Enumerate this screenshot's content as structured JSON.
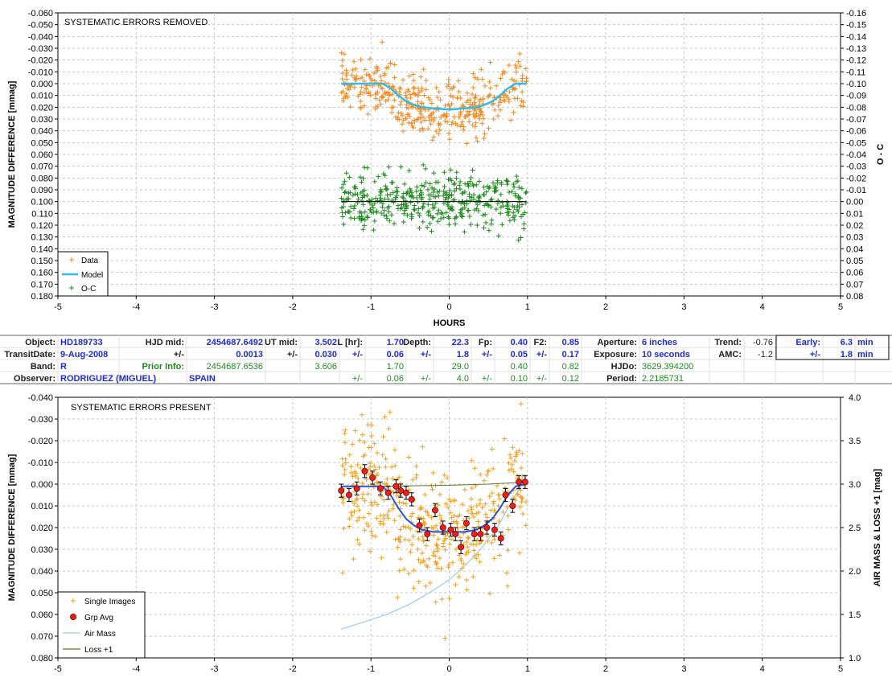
{
  "chart_data": [
    {
      "type": "scatter",
      "title": "SYSTEMATIC ERRORS REMOVED",
      "xlabel": "HOURS",
      "ylabel": "MAGNITUDE DIFFERENCE [mmag]",
      "y2label": "O - C",
      "xlim": [
        -5,
        5
      ],
      "ylim": [
        -0.06,
        0.18
      ],
      "y_inverted": true,
      "y2lim": [
        -0.16,
        0.08
      ],
      "xticks": [
        "-5",
        "-4",
        "-3",
        "-2",
        "-1",
        "0",
        "1",
        "2",
        "3",
        "4",
        "5"
      ],
      "yticks": [
        "-0.060",
        "-0.050",
        "-0.040",
        "-0.030",
        "-0.020",
        "-0.010",
        "0.000",
        "0.010",
        "0.020",
        "0.030",
        "0.040",
        "0.050",
        "0.060",
        "0.070",
        "0.080",
        "0.090",
        "0.100",
        "0.110",
        "0.120",
        "0.130",
        "0.140",
        "0.150",
        "0.160",
        "0.170",
        "0.180"
      ],
      "y2ticks": [
        "-0.16",
        "-0.15",
        "-0.14",
        "-0.13",
        "-0.12",
        "-0.11",
        "-0.10",
        "-0.09",
        "-0.08",
        "-0.07",
        "-0.06",
        "-0.05",
        "-0.04",
        "-0.03",
        "-0.02",
        "-0.01",
        "0.00",
        "0.01",
        "0.02",
        "0.03",
        "0.04",
        "0.05",
        "0.06",
        "0.07",
        "0.08"
      ],
      "legend_position": "bottom-left",
      "grid": true,
      "series": [
        {
          "name": "Data",
          "marker": "+",
          "color": "#f08a24",
          "x_range": [
            -1.38,
            0.99
          ],
          "y_center": 0.01,
          "y_spread": 0.03
        },
        {
          "name": "Model",
          "type": "line",
          "color": "#33bbe8",
          "x": [
            -1.38,
            -0.95,
            -0.85,
            -0.75,
            -0.65,
            -0.55,
            -0.45,
            -0.35,
            -0.2,
            0,
            0.2,
            0.35,
            0.45,
            0.55,
            0.65,
            0.75,
            0.85,
            0.99
          ],
          "y": [
            0.0,
            0.0,
            0.0,
            0.004,
            0.01,
            0.015,
            0.018,
            0.02,
            0.021,
            0.022,
            0.021,
            0.02,
            0.018,
            0.015,
            0.01,
            0.004,
            0.0,
            0.0
          ]
        },
        {
          "name": "O-C",
          "marker": "+",
          "color": "#1e8a1e",
          "x_range": [
            -1.38,
            0.99
          ],
          "y2_center": 0.0,
          "y2_spread": 0.03
        },
        {
          "name": "",
          "type": "line",
          "color": "#000000",
          "axis": "y2",
          "x": [
            -1.38,
            0.99
          ],
          "y": [
            0.0,
            0.0
          ]
        }
      ]
    },
    {
      "type": "scatter",
      "title": "SYSTEMATIC ERRORS PRESENT",
      "ylabel": "MAGNITUDE DIFFERENCE [mmag]",
      "y2label": "AIR MASS & LOSS +1 [mag]",
      "xlim": [
        -5,
        5
      ],
      "ylim": [
        -0.04,
        0.08
      ],
      "y_inverted": true,
      "y2lim": [
        1.0,
        4.0
      ],
      "xticks": [
        "-5",
        "-4",
        "-3",
        "-2",
        "-1",
        "0",
        "1",
        "2",
        "3",
        "4",
        "5"
      ],
      "yticks": [
        "-0.040",
        "-0.030",
        "-0.020",
        "-0.010",
        "0.000",
        "0.010",
        "0.020",
        "0.030",
        "0.040",
        "0.050",
        "0.060",
        "0.070",
        "0.080"
      ],
      "y2ticks": [
        "4.0",
        "3.5",
        "3.0",
        "2.5",
        "2.0",
        "1.5",
        "1.0"
      ],
      "legend_position": "bottom-left",
      "grid": true,
      "series": [
        {
          "name": "Single Images",
          "marker": "+",
          "color": "#f0a020",
          "x_range": [
            -1.38,
            0.99
          ],
          "y_center": 0.01,
          "y_spread": 0.033
        },
        {
          "name": "Grp Avg",
          "marker": "circle",
          "color": "#e82020",
          "x": [
            -1.38,
            -1.28,
            -1.18,
            -1.08,
            -0.98,
            -0.88,
            -0.78,
            -0.68,
            -0.62,
            -0.55,
            -0.48,
            -0.38,
            -0.28,
            -0.18,
            -0.08,
            0.02,
            0.08,
            0.15,
            0.22,
            0.32,
            0.4,
            0.48,
            0.58,
            0.66,
            0.72,
            0.81,
            0.89,
            0.97
          ],
          "y": [
            0.003,
            0.005,
            0.002,
            -0.006,
            -0.003,
            0.002,
            0.004,
            0.001,
            0.003,
            0.004,
            0.007,
            0.019,
            0.023,
            0.012,
            0.02,
            0.021,
            0.023,
            0.029,
            0.018,
            0.023,
            0.023,
            0.02,
            0.021,
            0.025,
            0.005,
            0.01,
            -0.001,
            -0.001
          ],
          "err": [
            0.003,
            0.003,
            0.003,
            0.003,
            0.003,
            0.003,
            0.003,
            0.003,
            0.003,
            0.003,
            0.003,
            0.003,
            0.003,
            0.003,
            0.003,
            0.003,
            0.003,
            0.003,
            0.003,
            0.003,
            0.003,
            0.003,
            0.003,
            0.003,
            0.003,
            0.003,
            0.003,
            0.003
          ]
        },
        {
          "name": "",
          "type": "line",
          "color": "#2a52d8",
          "x": [
            -1.38,
            -0.95,
            -0.85,
            -0.75,
            -0.65,
            -0.55,
            -0.45,
            -0.35,
            -0.2,
            0,
            0.2,
            0.35,
            0.45,
            0.55,
            0.65,
            0.75,
            0.85,
            0.99
          ],
          "y": [
            0.001,
            0.001,
            0.001,
            0.005,
            0.011,
            0.016,
            0.019,
            0.021,
            0.022,
            0.022,
            0.022,
            0.021,
            0.019,
            0.016,
            0.011,
            0.005,
            0.001,
            0.0
          ]
        },
        {
          "name": "Air Mass",
          "type": "line",
          "color": "#9fcbea",
          "axis": "y2",
          "x": [
            -1.38,
            -1.1,
            -0.8,
            -0.5,
            -0.2,
            0.0,
            0.2,
            0.4,
            0.6,
            0.8,
            0.99
          ],
          "y": [
            1.33,
            1.41,
            1.5,
            1.62,
            1.78,
            1.9,
            2.06,
            2.25,
            2.48,
            2.8,
            3.1
          ]
        },
        {
          "name": "Loss +1",
          "type": "line",
          "color": "#5a7a2c",
          "x": [
            -1.38,
            -1.0,
            -0.5,
            0.0,
            0.5,
            0.99
          ],
          "y": [
            0.001,
            0.001,
            0.0008,
            0.0005,
            0.0,
            -0.001
          ]
        }
      ]
    }
  ],
  "info_table": {
    "rows": [
      [
        {
          "t": "Object:",
          "c": "#202020",
          "b": true,
          "a": "end"
        },
        {
          "t": "HD189733",
          "c": "#1f2bd0",
          "b": true,
          "a": "start"
        },
        {
          "t": "HJD mid:",
          "c": "#202020",
          "b": true,
          "a": "end"
        },
        {
          "t": "2454687.6492",
          "c": "#1f2bd0",
          "b": true,
          "a": "end"
        },
        {
          "t": "UT mid:",
          "c": "#202020",
          "b": true,
          "a": "end"
        },
        {
          "t": "3.502",
          "c": "#1f2bd0",
          "b": true,
          "a": "end"
        },
        {
          "t": "L [hr]:",
          "c": "#202020",
          "b": true,
          "a": "end"
        },
        {
          "t": "1.70",
          "c": "#1f2bd0",
          "b": true,
          "a": "end"
        },
        {
          "t": "Depth:",
          "c": "#202020",
          "b": true,
          "a": "end"
        },
        {
          "t": "22.3",
          "c": "#1f2bd0",
          "b": true,
          "a": "end"
        },
        {
          "t": "Fp:",
          "c": "#202020",
          "b": true,
          "a": "end"
        },
        {
          "t": "0.40",
          "c": "#1f2bd0",
          "b": true,
          "a": "end"
        },
        {
          "t": "F2:",
          "c": "#202020",
          "b": true,
          "a": "end"
        },
        {
          "t": "0.85",
          "c": "#1f2bd0",
          "b": true,
          "a": "end"
        },
        {
          "t": "Aperture:",
          "c": "#202020",
          "b": true,
          "a": "end"
        },
        {
          "t": "6 inches",
          "c": "#1f2bd0",
          "b": true,
          "a": "start"
        },
        {
          "t": "Trend:",
          "c": "#202020",
          "b": true,
          "a": "end"
        },
        {
          "t": "-0.76",
          "c": "#202020",
          "b": false,
          "a": "end"
        },
        {
          "t": "Early:",
          "c": "#1f2bd0",
          "b": true,
          "a": "end"
        },
        {
          "t": "6.3",
          "c": "#1f2bd0",
          "b": true,
          "a": "end"
        },
        {
          "t": "min",
          "c": "#1f2bd0",
          "b": true,
          "a": "start"
        }
      ],
      [
        {
          "t": "TransitDate:",
          "c": "#202020",
          "b": true,
          "a": "end"
        },
        {
          "t": "9-Aug-2008",
          "c": "#1f2bd0",
          "b": true,
          "a": "start"
        },
        {
          "t": "+/-",
          "c": "#202020",
          "b": true,
          "a": "end"
        },
        {
          "t": "0.0013",
          "c": "#1f2bd0",
          "b": true,
          "a": "end"
        },
        {
          "t": "+/-",
          "c": "#202020",
          "b": true,
          "a": "end"
        },
        {
          "t": "0.030",
          "c": "#1f2bd0",
          "b": true,
          "a": "end"
        },
        {
          "t": "+/-",
          "c": "#1f2bd0",
          "b": true,
          "a": "end"
        },
        {
          "t": "0.06",
          "c": "#1f2bd0",
          "b": true,
          "a": "end"
        },
        {
          "t": "+/-",
          "c": "#1f2bd0",
          "b": true,
          "a": "end"
        },
        {
          "t": "1.8",
          "c": "#1f2bd0",
          "b": true,
          "a": "end"
        },
        {
          "t": "+/-",
          "c": "#1f2bd0",
          "b": true,
          "a": "end"
        },
        {
          "t": "0.05",
          "c": "#1f2bd0",
          "b": true,
          "a": "end"
        },
        {
          "t": "+/-",
          "c": "#1f2bd0",
          "b": true,
          "a": "end"
        },
        {
          "t": "0.17",
          "c": "#1f2bd0",
          "b": true,
          "a": "end"
        },
        {
          "t": "Exposure:",
          "c": "#202020",
          "b": true,
          "a": "end"
        },
        {
          "t": "10 seconds",
          "c": "#1f2bd0",
          "b": true,
          "a": "start"
        },
        {
          "t": "AMC:",
          "c": "#202020",
          "b": true,
          "a": "end"
        },
        {
          "t": "-1.2",
          "c": "#202020",
          "b": false,
          "a": "end"
        },
        {
          "t": "+/-",
          "c": "#1f2bd0",
          "b": true,
          "a": "end"
        },
        {
          "t": "1.8",
          "c": "#1f2bd0",
          "b": true,
          "a": "end"
        },
        {
          "t": "min",
          "c": "#1f2bd0",
          "b": true,
          "a": "start"
        }
      ],
      [
        {
          "t": "Band:",
          "c": "#202020",
          "b": true,
          "a": "end"
        },
        {
          "t": "R",
          "c": "#1f2bd0",
          "b": true,
          "a": "start"
        },
        {
          "t": "Prior Info:",
          "c": "#1e8a1e",
          "b": true,
          "a": "end"
        },
        {
          "t": "2454687.6536",
          "c": "#1e8a1e",
          "b": false,
          "a": "end"
        },
        {
          "t": "",
          "c": "#1e8a1e",
          "b": false,
          "a": "end"
        },
        {
          "t": "3.606",
          "c": "#1e8a1e",
          "b": false,
          "a": "end"
        },
        {
          "t": "",
          "c": "#1e8a1e",
          "b": false,
          "a": "end"
        },
        {
          "t": "1.70",
          "c": "#1e8a1e",
          "b": false,
          "a": "end"
        },
        {
          "t": "",
          "c": "#1e8a1e",
          "b": false,
          "a": "end"
        },
        {
          "t": "29.0",
          "c": "#1e8a1e",
          "b": false,
          "a": "end"
        },
        {
          "t": "",
          "c": "#1e8a1e",
          "b": false,
          "a": "end"
        },
        {
          "t": "0.40",
          "c": "#1e8a1e",
          "b": false,
          "a": "end"
        },
        {
          "t": "",
          "c": "#1e8a1e",
          "b": false,
          "a": "end"
        },
        {
          "t": "0.82",
          "c": "#1e8a1e",
          "b": false,
          "a": "end"
        },
        {
          "t": "HJDo:",
          "c": "#202020",
          "b": true,
          "a": "end"
        },
        {
          "t": "3629.394200",
          "c": "#1e8a1e",
          "b": false,
          "a": "start"
        },
        {
          "t": "",
          "c": "#202020",
          "b": false,
          "a": "end"
        },
        {
          "t": "",
          "c": "#202020",
          "b": false,
          "a": "end"
        },
        {
          "t": "",
          "c": "#202020",
          "b": false,
          "a": "end"
        },
        {
          "t": "",
          "c": "#202020",
          "b": false,
          "a": "end"
        },
        {
          "t": "",
          "c": "#202020",
          "b": false,
          "a": "start"
        }
      ],
      [
        {
          "t": "Observer:",
          "c": "#202020",
          "b": true,
          "a": "end"
        },
        {
          "t": "RODRIGUEZ (MIGUEL)",
          "c": "#1f2bd0",
          "b": true,
          "a": "start"
        },
        {
          "t": "",
          "c": "#202020",
          "b": false,
          "a": "end"
        },
        {
          "t": "SPAIN",
          "c": "#1f2bd0",
          "b": true,
          "a": "start"
        },
        {
          "t": "",
          "c": "#202020",
          "b": false,
          "a": "end"
        },
        {
          "t": "",
          "c": "#202020",
          "b": false,
          "a": "end"
        },
        {
          "t": "+/-",
          "c": "#1e8a1e",
          "b": false,
          "a": "end"
        },
        {
          "t": "0.06",
          "c": "#1e8a1e",
          "b": false,
          "a": "end"
        },
        {
          "t": "+/-",
          "c": "#1e8a1e",
          "b": false,
          "a": "end"
        },
        {
          "t": "4.0",
          "c": "#1e8a1e",
          "b": false,
          "a": "end"
        },
        {
          "t": "+/-",
          "c": "#1e8a1e",
          "b": false,
          "a": "end"
        },
        {
          "t": "0.10",
          "c": "#1e8a1e",
          "b": false,
          "a": "end"
        },
        {
          "t": "+/-",
          "c": "#1e8a1e",
          "b": false,
          "a": "end"
        },
        {
          "t": "0.12",
          "c": "#1e8a1e",
          "b": false,
          "a": "end"
        },
        {
          "t": "Period:",
          "c": "#202020",
          "b": true,
          "a": "end"
        },
        {
          "t": "2.2185731",
          "c": "#1e8a1e",
          "b": false,
          "a": "start"
        },
        {
          "t": "",
          "c": "#202020",
          "b": false,
          "a": "end"
        },
        {
          "t": "",
          "c": "#202020",
          "b": false,
          "a": "end"
        },
        {
          "t": "",
          "c": "#202020",
          "b": false,
          "a": "end"
        },
        {
          "t": "",
          "c": "#202020",
          "b": false,
          "a": "end"
        },
        {
          "t": "",
          "c": "#202020",
          "b": false,
          "a": "start"
        }
      ]
    ]
  }
}
